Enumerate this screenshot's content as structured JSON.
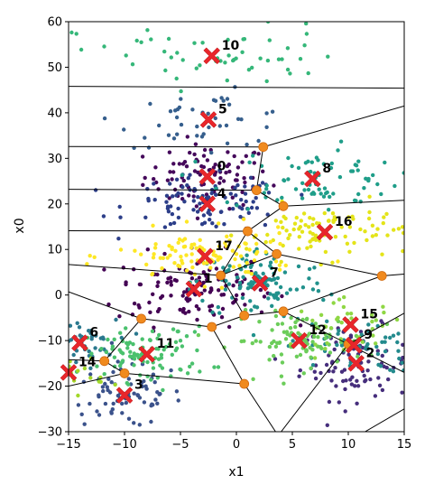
{
  "chart_data": {
    "type": "scatter",
    "xlabel": "x1",
    "ylabel": "x0",
    "xlim": [
      -15,
      15
    ],
    "ylim": [
      -30,
      60
    ],
    "x_ticks": [
      -15,
      -10,
      -5,
      0,
      5,
      10,
      15
    ],
    "y_ticks": [
      -30,
      -20,
      -10,
      0,
      10,
      20,
      30,
      40,
      50,
      60
    ],
    "grid": false,
    "legend": "none",
    "clusters": [
      {
        "label": "0",
        "x": -2.6,
        "y": 26.0,
        "n": 90,
        "sx": 2.8,
        "sy": 3.5,
        "color": "#45085b"
      },
      {
        "label": "1",
        "x": -3.8,
        "y": 1.3,
        "n": 120,
        "sx": 3.5,
        "sy": 4.0,
        "color": "#440154"
      },
      {
        "label": "2",
        "x": 10.7,
        "y": -15.0,
        "n": 95,
        "sx": 2.5,
        "sy": 4.0,
        "color": "#462e7c"
      },
      {
        "label": "3",
        "x": -10.0,
        "y": -22.0,
        "n": 80,
        "sx": 2.6,
        "sy": 3.5,
        "color": "#3b528b"
      },
      {
        "label": "4",
        "x": -2.6,
        "y": 20.0,
        "n": 100,
        "sx": 3.5,
        "sy": 3.0,
        "color": "#2c3e89"
      },
      {
        "label": "5",
        "x": -2.5,
        "y": 38.5,
        "n": 45,
        "sx": 4.0,
        "sy": 3.0,
        "color": "#365f8d"
      },
      {
        "label": "6",
        "x": -14.0,
        "y": -10.5,
        "n": 50,
        "sx": 1.6,
        "sy": 2.5,
        "color": "#2a788e"
      },
      {
        "label": "7",
        "x": 2.1,
        "y": 2.6,
        "n": 100,
        "sx": 3.0,
        "sy": 4.0,
        "color": "#21918c"
      },
      {
        "label": "8",
        "x": 6.8,
        "y": 25.5,
        "n": 80,
        "sx": 4.0,
        "sy": 3.5,
        "color": "#1f9e89"
      },
      {
        "label": "9",
        "x": 10.5,
        "y": -11.0,
        "n": 60,
        "sx": 3.0,
        "sy": 3.0,
        "color": "#238a8d"
      },
      {
        "label": "10",
        "x": -2.2,
        "y": 52.5,
        "n": 55,
        "sx": 6.0,
        "sy": 3.5,
        "color": "#35b779"
      },
      {
        "label": "11",
        "x": -8.0,
        "y": -13.0,
        "n": 95,
        "sx": 2.8,
        "sy": 3.0,
        "color": "#4ac16d"
      },
      {
        "label": "12",
        "x": 5.6,
        "y": -10.0,
        "n": 90,
        "sx": 3.0,
        "sy": 3.0,
        "color": "#6ccd5a"
      },
      {
        "label": "14",
        "x": -15.0,
        "y": -17.0,
        "n": 35,
        "sx": 1.6,
        "sy": 2.5,
        "color": "#a2d829"
      },
      {
        "label": "15",
        "x": 10.2,
        "y": -6.5,
        "n": 40,
        "sx": 2.5,
        "sy": 2.5,
        "color": "#8fd744"
      },
      {
        "label": "16",
        "x": 7.9,
        "y": 13.8,
        "n": 90,
        "sx": 3.5,
        "sy": 3.0,
        "color": "#e4e419"
      },
      {
        "label": "17",
        "x": -2.8,
        "y": 8.5,
        "n": 110,
        "sx": 4.0,
        "sy": 2.8,
        "color": "#fde725"
      }
    ],
    "voronoi_vertices": [
      {
        "x": 2.4,
        "y": 32.5
      },
      {
        "x": 1.8,
        "y": 23.0
      },
      {
        "x": 4.2,
        "y": 19.5
      },
      {
        "x": 1.0,
        "y": 14.0
      },
      {
        "x": 3.6,
        "y": 9.0
      },
      {
        "x": -1.4,
        "y": 4.3
      },
      {
        "x": 13.0,
        "y": 4.2
      },
      {
        "x": 0.7,
        "y": -4.5
      },
      {
        "x": 4.2,
        "y": -3.6
      },
      {
        "x": -2.2,
        "y": -7.0
      },
      {
        "x": -8.5,
        "y": -5.2
      },
      {
        "x": 10.0,
        "y": -10.8
      },
      {
        "x": -11.8,
        "y": -14.5
      },
      {
        "x": -10.0,
        "y": -17.2
      },
      {
        "x": 0.7,
        "y": -19.5
      }
    ],
    "voronoi_edges": [
      [
        [
          -15,
          45.8
        ],
        [
          15,
          45.4
        ]
      ],
      [
        [
          -15,
          32.6
        ],
        [
          2.4,
          32.5
        ]
      ],
      [
        [
          2.4,
          32.5
        ],
        [
          15,
          41.5
        ]
      ],
      [
        [
          2.4,
          32.5
        ],
        [
          1.8,
          23.0
        ]
      ],
      [
        [
          -15,
          23.2
        ],
        [
          1.8,
          23.0
        ]
      ],
      [
        [
          1.8,
          23.0
        ],
        [
          4.2,
          19.5
        ]
      ],
      [
        [
          4.2,
          19.5
        ],
        [
          15,
          20.8
        ]
      ],
      [
        [
          4.2,
          19.5
        ],
        [
          1.0,
          14.0
        ]
      ],
      [
        [
          -15,
          14.1
        ],
        [
          1.0,
          14.0
        ]
      ],
      [
        [
          1.0,
          14.0
        ],
        [
          3.6,
          9.0
        ]
      ],
      [
        [
          1.0,
          14.0
        ],
        [
          -1.4,
          4.3
        ]
      ],
      [
        [
          3.6,
          9.0
        ],
        [
          13.0,
          4.2
        ]
      ],
      [
        [
          3.6,
          9.0
        ],
        [
          -1.4,
          4.3
        ]
      ],
      [
        [
          13.0,
          4.2
        ],
        [
          15,
          4.6
        ]
      ],
      [
        [
          13.0,
          4.2
        ],
        [
          4.2,
          -3.6
        ]
      ],
      [
        [
          -15,
          6.7
        ],
        [
          -1.4,
          4.3
        ]
      ],
      [
        [
          -1.4,
          4.3
        ],
        [
          0.7,
          -4.5
        ]
      ],
      [
        [
          0.7,
          -4.5
        ],
        [
          4.2,
          -3.6
        ]
      ],
      [
        [
          0.7,
          -4.5
        ],
        [
          -2.2,
          -7.0
        ]
      ],
      [
        [
          -2.2,
          -7.0
        ],
        [
          -8.5,
          -5.2
        ]
      ],
      [
        [
          -15,
          0.7
        ],
        [
          -8.5,
          -5.2
        ]
      ],
      [
        [
          -8.5,
          -5.2
        ],
        [
          -11.8,
          -14.5
        ]
      ],
      [
        [
          -2.2,
          -7.0
        ],
        [
          0.7,
          -19.5
        ]
      ],
      [
        [
          4.2,
          -3.6
        ],
        [
          10.0,
          -10.8
        ]
      ],
      [
        [
          10.0,
          -10.8
        ],
        [
          15,
          -4.0
        ]
      ],
      [
        [
          10.0,
          -10.8
        ],
        [
          15,
          -17.0
        ]
      ],
      [
        [
          10.0,
          -10.8
        ],
        [
          4.0,
          -30.0
        ]
      ],
      [
        [
          0.7,
          -19.5
        ],
        [
          3.5,
          -30.0
        ]
      ],
      [
        [
          0.7,
          -19.5
        ],
        [
          -10.0,
          -17.2
        ]
      ],
      [
        [
          -10.0,
          -17.2
        ],
        [
          -11.8,
          -14.5
        ]
      ],
      [
        [
          -10.0,
          -17.2
        ],
        [
          -15,
          -20.0
        ]
      ],
      [
        [
          -11.8,
          -14.5
        ],
        [
          -15,
          -14.2
        ]
      ],
      [
        [
          11.5,
          -30.0
        ],
        [
          15,
          -25.0
        ]
      ]
    ]
  }
}
